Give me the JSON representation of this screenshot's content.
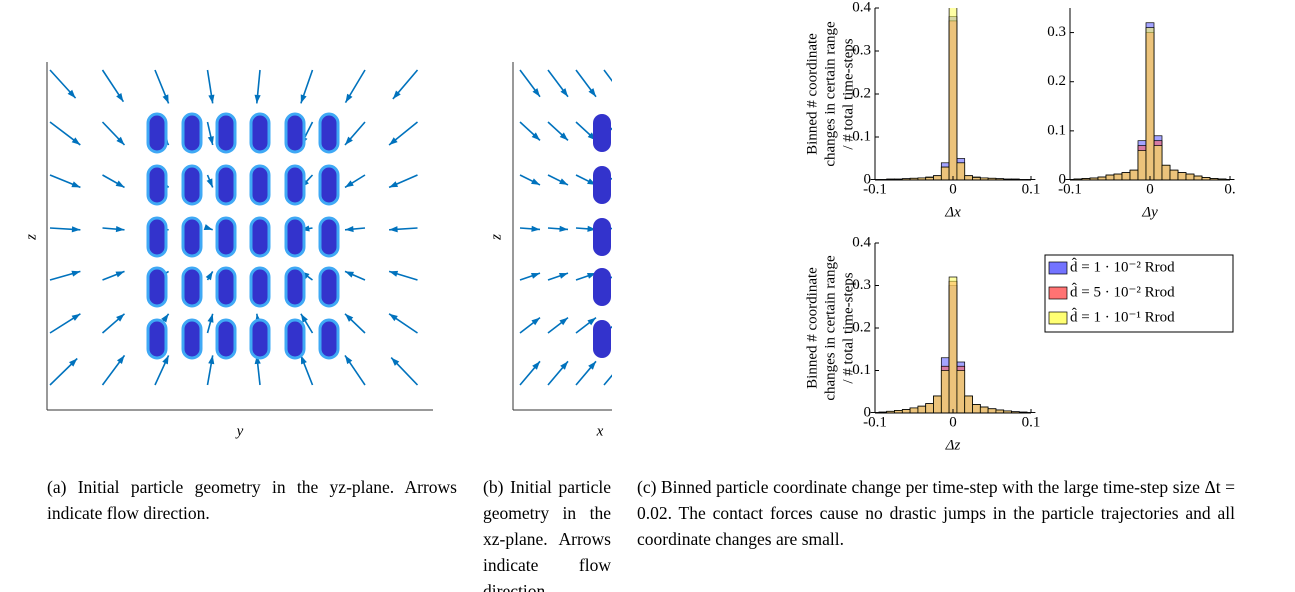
{
  "panels": [
    {
      "xlabel": "y",
      "ylabel": "z",
      "caption": "(a) Initial particle geometry in the yz-plane. Arrows indicate flow direction."
    },
    {
      "xlabel": "x",
      "ylabel": "z",
      "caption": "(b) Initial particle geometry in the xz-plane. Arrows indicate flow direction."
    }
  ],
  "caption_c": "(c) Binned particle coordinate change per time-step with the large time-step size Δt = 0.02. The contact forces cause no drastic jumps in the particle trajectories and all coordinate changes are small.",
  "chart_data": [
    {
      "type": "histogram",
      "xlabel": "Δx",
      "ylabel_lines": [
        "Binned # coordinate",
        "changes in certain range",
        "/ # total time-steps"
      ],
      "bins": [
        -0.105,
        -0.095,
        -0.085,
        -0.075,
        -0.065,
        -0.055,
        -0.045,
        -0.035,
        -0.025,
        -0.015,
        -0.005,
        0.005,
        0.015,
        0.025,
        0.035,
        0.045,
        0.055,
        0.065,
        0.075,
        0.085,
        0.095,
        0.105
      ],
      "xlim": [
        -0.1,
        0.1
      ],
      "xticks": [
        -0.1,
        0,
        0.1
      ],
      "ylim": [
        0,
        0.4
      ],
      "yticks": [
        0,
        0.1,
        0.2,
        0.3,
        0.4
      ],
      "series": [
        {
          "name": "d̂ = 1 · 10⁻² Rrod",
          "color": "#5a5aff",
          "values": [
            0.001,
            0.001,
            0.002,
            0.002,
            0.003,
            0.004,
            0.005,
            0.007,
            0.01,
            0.04,
            0.38,
            0.05,
            0.01,
            0.007,
            0.005,
            0.004,
            0.003,
            0.002,
            0.002,
            0.001,
            0.001
          ]
        },
        {
          "name": "d̂ = 5 · 10⁻² Rrod",
          "color": "#ff5a5a",
          "values": [
            0.001,
            0.001,
            0.002,
            0.002,
            0.003,
            0.004,
            0.005,
            0.006,
            0.01,
            0.03,
            0.37,
            0.04,
            0.01,
            0.006,
            0.005,
            0.004,
            0.003,
            0.002,
            0.002,
            0.001,
            0.001
          ]
        },
        {
          "name": "d̂ = 1 · 10⁻¹ Rrod",
          "color": "#ffff5a",
          "values": [
            0.001,
            0.001,
            0.002,
            0.002,
            0.003,
            0.004,
            0.005,
            0.006,
            0.01,
            0.03,
            0.41,
            0.04,
            0.01,
            0.006,
            0.005,
            0.004,
            0.003,
            0.002,
            0.002,
            0.001,
            0.001
          ]
        }
      ]
    },
    {
      "type": "histogram",
      "xlabel": "Δy",
      "bins": [
        -0.105,
        -0.095,
        -0.085,
        -0.075,
        -0.065,
        -0.055,
        -0.045,
        -0.035,
        -0.025,
        -0.015,
        -0.005,
        0.005,
        0.015,
        0.025,
        0.035,
        0.045,
        0.055,
        0.065,
        0.075,
        0.085,
        0.095,
        0.105
      ],
      "xlim": [
        -0.1,
        0.1
      ],
      "xticks": [
        -0.1,
        0,
        {
          "value": 0.1,
          "label": "0."
        }
      ],
      "ylim": [
        0,
        0.35
      ],
      "yticks": [
        0,
        0.1,
        0.2,
        0.3
      ],
      "series": [
        {
          "name": "d̂ = 1 · 10⁻² Rrod",
          "color": "#5a5aff",
          "values": [
            0.001,
            0.002,
            0.003,
            0.004,
            0.006,
            0.01,
            0.012,
            0.015,
            0.02,
            0.08,
            0.32,
            0.09,
            0.03,
            0.02,
            0.015,
            0.012,
            0.008,
            0.005,
            0.003,
            0.002,
            0.001
          ]
        },
        {
          "name": "d̂ = 5 · 10⁻² Rrod",
          "color": "#ff5a5a",
          "values": [
            0.001,
            0.002,
            0.003,
            0.004,
            0.006,
            0.01,
            0.012,
            0.015,
            0.02,
            0.07,
            0.3,
            0.08,
            0.03,
            0.02,
            0.015,
            0.012,
            0.008,
            0.005,
            0.003,
            0.002,
            0.001
          ]
        },
        {
          "name": "d̂ = 1 · 10⁻¹ Rrod",
          "color": "#ffff5a",
          "values": [
            0.001,
            0.002,
            0.003,
            0.004,
            0.006,
            0.01,
            0.012,
            0.015,
            0.02,
            0.06,
            0.31,
            0.07,
            0.03,
            0.02,
            0.015,
            0.012,
            0.008,
            0.005,
            0.003,
            0.002,
            0.001
          ]
        }
      ]
    },
    {
      "type": "histogram",
      "xlabel": "Δz",
      "ylabel_lines": [
        "Binned # coordinate",
        "changes in certain range",
        "/ # total time-steps"
      ],
      "bins": [
        -0.105,
        -0.095,
        -0.085,
        -0.075,
        -0.065,
        -0.055,
        -0.045,
        -0.035,
        -0.025,
        -0.015,
        -0.005,
        0.005,
        0.015,
        0.025,
        0.035,
        0.045,
        0.055,
        0.065,
        0.075,
        0.085,
        0.095,
        0.105
      ],
      "xlim": [
        -0.1,
        0.1
      ],
      "xticks": [
        -0.1,
        0,
        0.1
      ],
      "ylim": [
        0,
        0.4
      ],
      "yticks": [
        0,
        0.1,
        0.2,
        0.3,
        0.4
      ],
      "legend": "outside right",
      "series": [
        {
          "name": "d̂ = 1 · 10⁻² Rrod",
          "color": "#5a5aff",
          "values": [
            0.001,
            0.002,
            0.004,
            0.006,
            0.008,
            0.012,
            0.016,
            0.022,
            0.04,
            0.13,
            0.3,
            0.12,
            0.04,
            0.02,
            0.014,
            0.01,
            0.007,
            0.005,
            0.003,
            0.002,
            0.001
          ]
        },
        {
          "name": "d̂ = 5 · 10⁻² Rrod",
          "color": "#ff5a5a",
          "values": [
            0.001,
            0.002,
            0.004,
            0.006,
            0.008,
            0.012,
            0.016,
            0.022,
            0.04,
            0.11,
            0.31,
            0.11,
            0.04,
            0.02,
            0.014,
            0.01,
            0.007,
            0.005,
            0.003,
            0.002,
            0.001
          ]
        },
        {
          "name": "d̂ = 1 · 10⁻¹ Rrod",
          "color": "#ffff5a",
          "values": [
            0.001,
            0.002,
            0.004,
            0.006,
            0.008,
            0.012,
            0.016,
            0.022,
            0.04,
            0.1,
            0.32,
            0.1,
            0.04,
            0.02,
            0.014,
            0.01,
            0.007,
            0.005,
            0.003,
            0.002,
            0.001
          ]
        }
      ]
    }
  ]
}
